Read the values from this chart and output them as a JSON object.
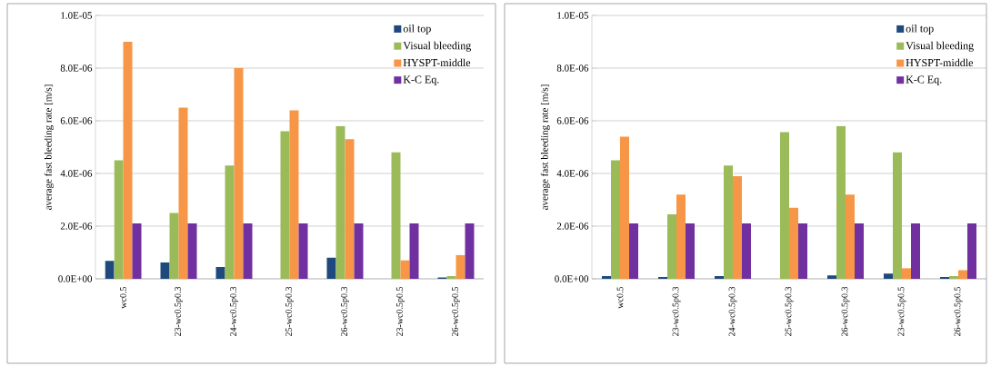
{
  "chart_data": [
    {
      "type": "bar",
      "ylabel": "average fast bleeding rate [m/s]",
      "categories": [
        "wc0.5",
        "23-wc0.5p0.3",
        "24-wc0.5p0.3",
        "25-wc0.5p0.3",
        "26-wc0.5p0.3",
        "23-wc0.5p0.5",
        "26-wc0.5p0.5"
      ],
      "series": [
        {
          "name": "oil top",
          "color": "#1f497d",
          "values": [
            6.8e-07,
            6.2e-07,
            4.5e-07,
            null,
            8e-07,
            null,
            5e-08
          ]
        },
        {
          "name": "Visual bleeding",
          "color": "#9bbb59",
          "values": [
            4.5e-06,
            2.5e-06,
            4.3e-06,
            5.6e-06,
            5.8e-06,
            4.8e-06,
            1e-07
          ]
        },
        {
          "name": "HYSPT-middle",
          "color": "#f79646",
          "values": [
            9e-06,
            6.5e-06,
            8e-06,
            6.4e-06,
            5.3e-06,
            7e-07,
            9e-07
          ]
        },
        {
          "name": "K-C Eq.",
          "color": "#7030a0",
          "values": [
            2.1e-06,
            2.1e-06,
            2.1e-06,
            2.1e-06,
            2.1e-06,
            2.1e-06,
            2.1e-06
          ]
        }
      ],
      "ylim": [
        0,
        1e-05
      ],
      "yticks": [
        {
          "value": 0,
          "label": "0.0E+00"
        },
        {
          "value": 2e-06,
          "label": "2.0E-06"
        },
        {
          "value": 4e-06,
          "label": "4.0E-06"
        },
        {
          "value": 6e-06,
          "label": "6.0E-06"
        },
        {
          "value": 8e-06,
          "label": "8.0E-06"
        },
        {
          "value": 1e-05,
          "label": "1.0E-05"
        }
      ],
      "grid": "y",
      "legend": "top right"
    },
    {
      "type": "bar",
      "ylabel": "average fast bleeding rate [m/s]",
      "categories": [
        "wc0.5",
        "23-wc0.5p0.3",
        "24-wc0.5p0.3",
        "25-wc0.5p0.3",
        "26-wc0.5p0.3",
        "23-wc0.5p0.5",
        "26-wc0.5p0.5"
      ],
      "series": [
        {
          "name": "oil top",
          "color": "#1f497d",
          "values": [
            1e-07,
            7e-08,
            1e-07,
            null,
            1.3e-07,
            2e-07,
            7e-08
          ]
        },
        {
          "name": "Visual bleeding",
          "color": "#9bbb59",
          "values": [
            4.5e-06,
            2.45e-06,
            4.3e-06,
            5.57e-06,
            5.8e-06,
            4.8e-06,
            1e-07
          ]
        },
        {
          "name": "HYSPT-middle",
          "color": "#f79646",
          "values": [
            5.4e-06,
            3.2e-06,
            3.9e-06,
            2.7e-06,
            3.2e-06,
            4e-07,
            3.3e-07
          ]
        },
        {
          "name": "K-C Eq.",
          "color": "#7030a0",
          "values": [
            2.1e-06,
            2.1e-06,
            2.1e-06,
            2.1e-06,
            2.1e-06,
            2.1e-06,
            2.1e-06
          ]
        }
      ],
      "ylim": [
        0,
        1e-05
      ],
      "yticks": [
        {
          "value": 0,
          "label": "0.0E+00"
        },
        {
          "value": 2e-06,
          "label": "2.0E-06"
        },
        {
          "value": 4e-06,
          "label": "4.0E-06"
        },
        {
          "value": 6e-06,
          "label": "6.0E-06"
        },
        {
          "value": 8e-06,
          "label": "8.0E-06"
        },
        {
          "value": 1e-05,
          "label": "1.0E-05"
        }
      ],
      "grid": "y",
      "legend": "top right"
    }
  ]
}
